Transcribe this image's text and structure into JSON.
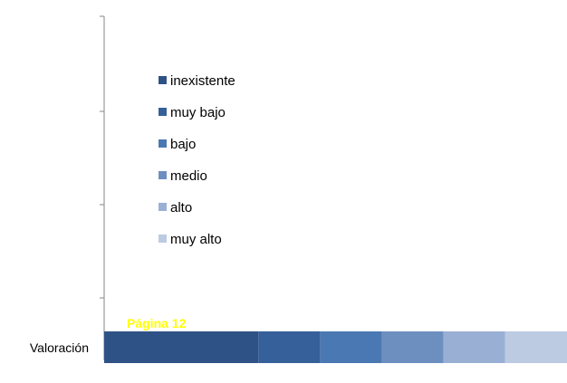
{
  "chart_data": {
    "type": "bar",
    "orientation": "horizontal",
    "stacked": true,
    "categories": [
      "Valoración"
    ],
    "series": [
      {
        "name": "inexistente",
        "values": [
          2.5
        ],
        "color": "#2f5286"
      },
      {
        "name": "muy bajo",
        "values": [
          1.0
        ],
        "color": "#36609a"
      },
      {
        "name": "bajo",
        "values": [
          1.0
        ],
        "color": "#4a78b3"
      },
      {
        "name": "medio",
        "values": [
          1.0
        ],
        "color": "#6d8fc0"
      },
      {
        "name": "alto",
        "values": [
          1.0
        ],
        "color": "#9aafd4"
      },
      {
        "name": "muy alto",
        "values": [
          1.0
        ],
        "color": "#bccbe2"
      }
    ],
    "legend_position": "top-left",
    "annotation": "Página 12",
    "annotation_color": "#ffff00",
    "grid": false
  }
}
